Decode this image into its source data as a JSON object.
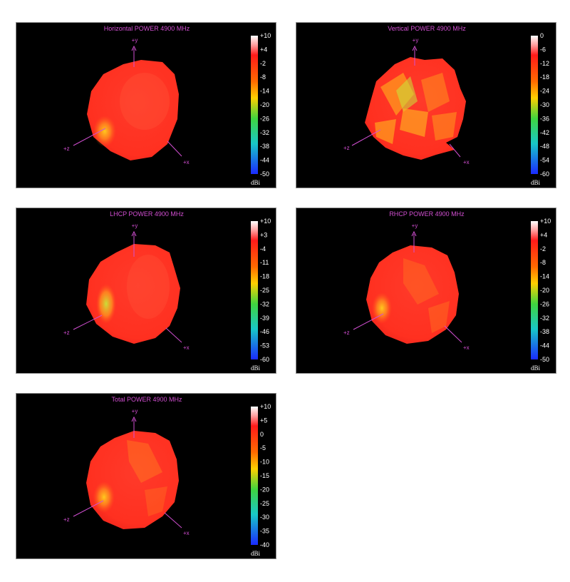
{
  "colors": {
    "panel_bg": "#000000",
    "axis": "#d24fd2",
    "scale_text": "#ffffff"
  },
  "chart_data": [
    {
      "type": "3d-radiation-pattern",
      "title": "Horizontal POWER 4900  MHz",
      "unit": "dBi",
      "axes": [
        "+y",
        "+z",
        "+x"
      ],
      "scale_ticks": [
        "+10",
        "+4",
        "-2",
        "-8",
        "-14",
        "-20",
        "-26",
        "-32",
        "-38",
        "-44",
        "-50"
      ],
      "scale_range": [
        -50,
        10
      ]
    },
    {
      "type": "3d-radiation-pattern",
      "title": "Vertical POWER 4900  MHz",
      "unit": "dBi",
      "axes": [
        "+y",
        "+z",
        "+x"
      ],
      "scale_ticks": [
        "0",
        "-6",
        "-12",
        "-18",
        "-24",
        "-30",
        "-36",
        "-42",
        "-48",
        "-54",
        "-60"
      ],
      "scale_range": [
        -60,
        0
      ]
    },
    {
      "type": "3d-radiation-pattern",
      "title": "LHCP POWER 4900  MHz",
      "unit": "dBi",
      "axes": [
        "+y",
        "+z",
        "+x"
      ],
      "scale_ticks": [
        "+10",
        "+3",
        "-4",
        "-11",
        "-18",
        "-25",
        "-32",
        "-39",
        "-46",
        "-53",
        "-60"
      ],
      "scale_range": [
        -60,
        10
      ]
    },
    {
      "type": "3d-radiation-pattern",
      "title": "RHCP POWER 4900  MHz",
      "unit": "dBi",
      "axes": [
        "+y",
        "+z",
        "+x"
      ],
      "scale_ticks": [
        "+10",
        "+4",
        "-2",
        "-8",
        "-14",
        "-20",
        "-26",
        "-32",
        "-38",
        "-44",
        "-50"
      ],
      "scale_range": [
        -50,
        10
      ]
    },
    {
      "type": "3d-radiation-pattern",
      "title": "Total POWER 4900  MHz",
      "unit": "dBi",
      "axes": [
        "+y",
        "+z",
        "+x"
      ],
      "scale_ticks": [
        "+10",
        "+5",
        "0",
        "-5",
        "-10",
        "-15",
        "-20",
        "-25",
        "-30",
        "-35",
        "-40"
      ],
      "scale_range": [
        -40,
        10
      ]
    }
  ]
}
